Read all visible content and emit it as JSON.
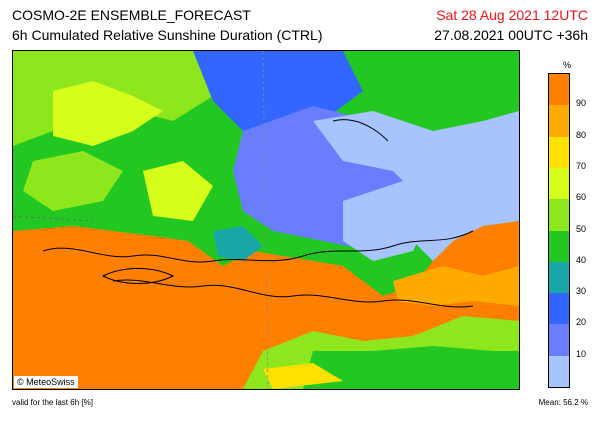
{
  "header": {
    "title": "COSMO-2E ENSEMBLE_FORECAST",
    "subtitle": "6h Cumulated Relative Sunshine Duration (CTRL)",
    "valid_time": "Sat 28 Aug 2021 12UTC",
    "run_time": "27.08.2021 00UTC +36h"
  },
  "map": {
    "copyright": "© MeteoSwiss"
  },
  "legend": {
    "unit": "%",
    "labels": [
      "90",
      "80",
      "70",
      "60",
      "50",
      "40",
      "30",
      "20",
      "10"
    ],
    "colors": [
      "#ff7f00",
      "#ffaa00",
      "#ffe100",
      "#d5ff1a",
      "#8ee61c",
      "#22c722",
      "#18a6a6",
      "#3366ff",
      "#6a7dff",
      "#a8c4ff"
    ]
  },
  "footer": {
    "left": "valid for the last 6h [%]",
    "right": "Mean:   56.2 %"
  }
}
